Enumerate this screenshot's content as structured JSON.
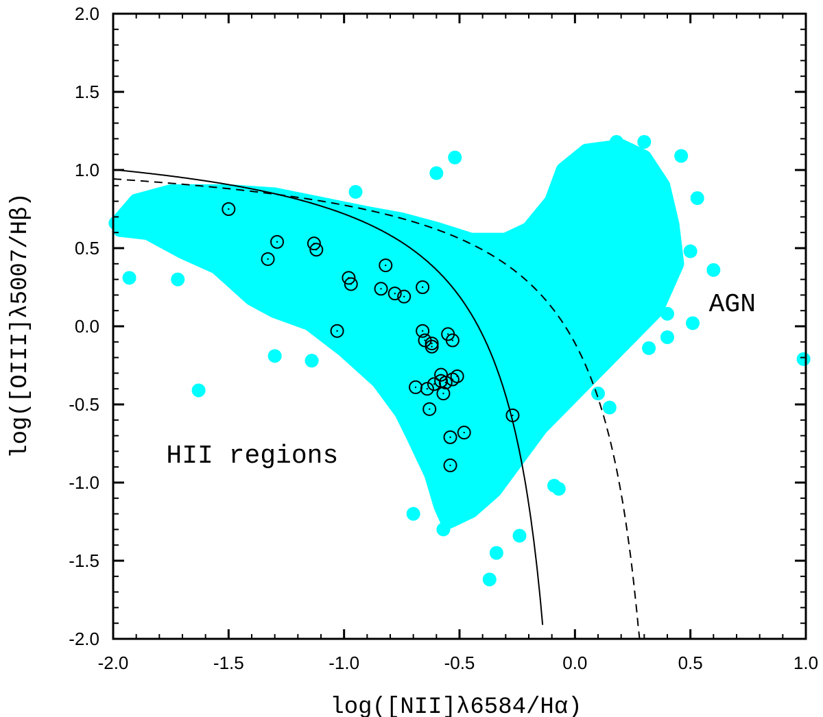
{
  "chart_data": {
    "type": "scatter",
    "title": "",
    "xlabel": "log([NII]λ6584/Hα)",
    "ylabel": "log([OIII]λ5007/Hβ)",
    "xlim": [
      -2.0,
      1.0
    ],
    "ylim": [
      -2.0,
      2.0
    ],
    "x_ticks": [
      -2.0,
      -1.5,
      -1.0,
      -0.5,
      0.0,
      0.5,
      1.0
    ],
    "y_ticks": [
      -2.0,
      -1.5,
      -1.0,
      -0.5,
      0.0,
      0.5,
      1.0,
      1.5,
      2.0
    ],
    "x_tick_labels": [
      "-2.0",
      "-1.5",
      "-1.0",
      "-0.5",
      "0.0",
      "0.5",
      "1.0"
    ],
    "y_tick_labels": [
      "-2.0",
      "-1.5",
      "-1.0",
      "-0.5",
      "0.0",
      "0.5",
      "1.0",
      "1.5",
      "2.0"
    ],
    "grid": false,
    "annotations": [
      {
        "text": "HII regions",
        "x": -1.77,
        "y": -0.82
      },
      {
        "text": "AGN",
        "x": 0.58,
        "y": 0.15
      }
    ],
    "colors": {
      "background_sample": "#00ffff",
      "highlighted": "#000000",
      "curves": "#000000"
    },
    "curves": [
      {
        "style": "solid",
        "equation": "y = 0.61/(x - 0.05) + 1.3",
        "x_range": [
          -2.0,
          -0.14
        ]
      },
      {
        "style": "dashed",
        "equation": "y = 0.61/(x - 0.47) + 1.19",
        "x_range": [
          -2.0,
          0.28
        ]
      }
    ],
    "highlighted_points": [
      {
        "x": -1.5,
        "y": 0.75
      },
      {
        "x": -1.33,
        "y": 0.43
      },
      {
        "x": -1.29,
        "y": 0.54
      },
      {
        "x": -1.13,
        "y": 0.53
      },
      {
        "x": -1.12,
        "y": 0.49
      },
      {
        "x": -0.98,
        "y": 0.31
      },
      {
        "x": -0.97,
        "y": 0.27
      },
      {
        "x": -1.03,
        "y": -0.03
      },
      {
        "x": -0.82,
        "y": 0.39
      },
      {
        "x": -0.84,
        "y": 0.24
      },
      {
        "x": -0.78,
        "y": 0.21
      },
      {
        "x": -0.74,
        "y": 0.19
      },
      {
        "x": -0.66,
        "y": 0.25
      },
      {
        "x": -0.66,
        "y": -0.03
      },
      {
        "x": -0.65,
        "y": -0.09
      },
      {
        "x": -0.62,
        "y": -0.11
      },
      {
        "x": -0.62,
        "y": -0.13
      },
      {
        "x": -0.55,
        "y": -0.05
      },
      {
        "x": -0.53,
        "y": -0.09
      },
      {
        "x": -0.58,
        "y": -0.31
      },
      {
        "x": -0.58,
        "y": -0.35
      },
      {
        "x": -0.56,
        "y": -0.36
      },
      {
        "x": -0.53,
        "y": -0.34
      },
      {
        "x": -0.51,
        "y": -0.32
      },
      {
        "x": -0.61,
        "y": -0.37
      },
      {
        "x": -0.64,
        "y": -0.4
      },
      {
        "x": -0.69,
        "y": -0.39
      },
      {
        "x": -0.57,
        "y": -0.43
      },
      {
        "x": -0.63,
        "y": -0.53
      },
      {
        "x": -0.48,
        "y": -0.68
      },
      {
        "x": -0.54,
        "y": -0.71
      },
      {
        "x": -0.54,
        "y": -0.89
      },
      {
        "x": -0.27,
        "y": -0.57
      }
    ],
    "background_points": [
      {
        "x": -1.99,
        "y": 0.66
      },
      {
        "x": -1.93,
        "y": 0.31
      },
      {
        "x": -1.72,
        "y": 0.3
      },
      {
        "x": -1.63,
        "y": -0.41
      },
      {
        "x": -1.3,
        "y": -0.19
      },
      {
        "x": -1.14,
        "y": -0.22
      },
      {
        "x": -0.95,
        "y": 0.86
      },
      {
        "x": -0.7,
        "y": -1.2
      },
      {
        "x": -0.57,
        "y": -1.3
      },
      {
        "x": -0.37,
        "y": -1.62
      },
      {
        "x": -0.34,
        "y": -1.45
      },
      {
        "x": -0.24,
        "y": -1.34
      },
      {
        "x": -0.09,
        "y": -1.02
      },
      {
        "x": -0.07,
        "y": -1.04
      },
      {
        "x": 0.1,
        "y": -0.43
      },
      {
        "x": 0.15,
        "y": -0.52
      },
      {
        "x": 0.32,
        "y": -0.14
      },
      {
        "x": 0.4,
        "y": -0.07
      },
      {
        "x": 0.51,
        "y": 0.02
      },
      {
        "x": 0.6,
        "y": 0.36
      },
      {
        "x": 0.53,
        "y": 0.82
      },
      {
        "x": 0.46,
        "y": 1.09
      },
      {
        "x": 0.18,
        "y": 1.18
      },
      {
        "x": 0.3,
        "y": 1.18
      },
      {
        "x": -0.6,
        "y": 0.98
      },
      {
        "x": -0.52,
        "y": 1.08
      },
      {
        "x": 0.99,
        "y": -0.21
      },
      {
        "x": 0.4,
        "y": 0.08
      },
      {
        "x": 0.5,
        "y": 0.48
      }
    ]
  }
}
